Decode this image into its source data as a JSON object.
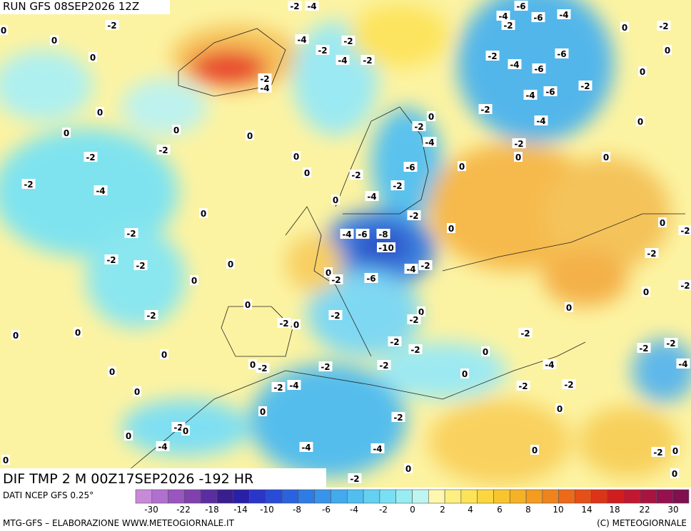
{
  "header": {
    "run": "RUN GFS 08SEP2026 12Z"
  },
  "map": {
    "field_label": "DIF TMP 2 M 00Z17SEP2026 -192 HR",
    "labels": [
      "-2",
      "-4",
      "-6",
      "-2",
      "-4",
      "-6",
      "-4",
      "0",
      "-2",
      "0",
      "0",
      "-4",
      "-2",
      "-2",
      "-2",
      "0",
      "0",
      "-4",
      "-2",
      "-2",
      "-6",
      "-4",
      "-6",
      "-2",
      "-4",
      "0",
      "-6",
      "-4",
      "-2",
      "0",
      "-2",
      "0",
      "0",
      "0",
      "0",
      "-2",
      "-4",
      "0",
      "-2",
      "-4",
      "-2",
      "-2",
      "0",
      "0",
      "0",
      "-6",
      "0",
      "-2",
      "0",
      "-2",
      "-4",
      "-4",
      "-2",
      "0",
      "0",
      "-2",
      "-4",
      "-6",
      "-8",
      "-10",
      "-2",
      "0",
      "0",
      "-2",
      "-2",
      "-2",
      "0",
      "-2",
      "-4",
      "-2",
      "0",
      "-2",
      "-6",
      "0",
      "-2",
      "0",
      "0",
      "-2",
      "-2",
      "0",
      "0",
      "-2",
      "0",
      "-2",
      "0",
      "0",
      "-2",
      "0",
      "-2",
      "-2",
      "0",
      "-2",
      "-2",
      "0",
      "0",
      "-2",
      "-2",
      "-2",
      "-4",
      "0",
      "-4",
      "0",
      "-2",
      "-4",
      "-2",
      "-2",
      "0",
      "-2",
      "0",
      "-2",
      "0",
      "0",
      "-4",
      "-4",
      "-4",
      "0",
      "-2",
      "0",
      "0",
      "0",
      "0",
      "-2"
    ]
  },
  "legend": {
    "source": "DATI NCEP GFS 0.25°",
    "labels": [
      "-30",
      "-22",
      "-18",
      "-14",
      "-10",
      "-8",
      "-6",
      "-4",
      "-2",
      "0",
      "2",
      "4",
      "6",
      "8",
      "10",
      "14",
      "18",
      "22",
      "30"
    ]
  },
  "footer": {
    "left": "MTG-GFS – ELABORAZIONE WWW.METEOGIORNALE.IT",
    "right": "(C) METEOGIORNALE"
  }
}
